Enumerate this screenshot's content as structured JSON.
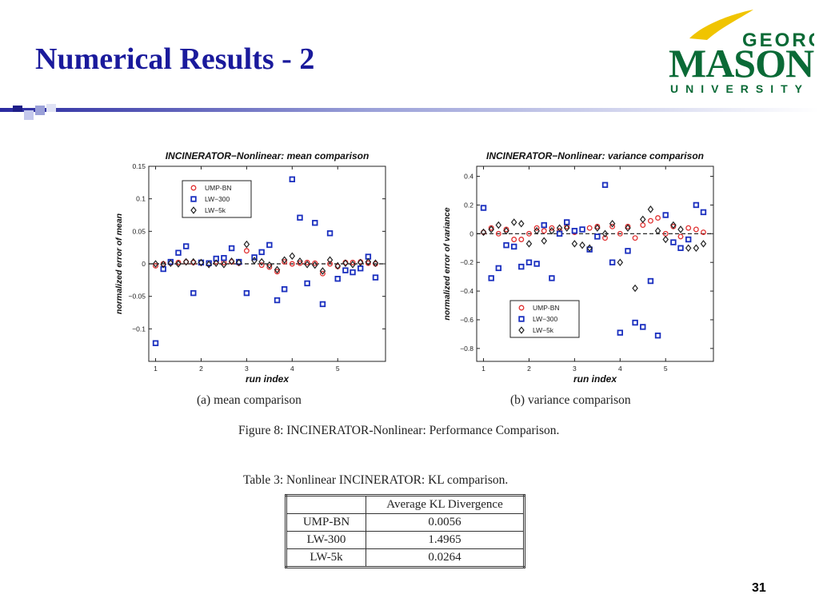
{
  "slide": {
    "title": "Numerical Results - 2",
    "page_number": "31",
    "colors": {
      "title": "#1a1a9c",
      "logo_green": "#0a6a36",
      "logo_gold": "#f0c400"
    }
  },
  "logo": {
    "line1": "GEORGE",
    "line2": "MASON",
    "line3": "UNIVERSITY"
  },
  "figure": {
    "caption": "Figure 8: INCINERATOR-Nonlinear: Performance Comparison.",
    "subcaption_a": "(a) mean comparison",
    "subcaption_b": "(b) variance comparison"
  },
  "table": {
    "caption": "Table 3: Nonlinear INCINERATOR: KL comparison.",
    "header": [
      "",
      "Average KL Divergence"
    ],
    "rows": [
      [
        "UMP-BN",
        "0.0056"
      ],
      [
        "LW-300",
        "1.4965"
      ],
      [
        "LW-5k",
        "0.0264"
      ]
    ]
  },
  "chart_data": [
    {
      "type": "scatter",
      "title": "INCINERATOR−Nonlinear: mean comparison",
      "xlabel": "run index",
      "ylabel": "normalized error of mean",
      "xlim": [
        0.85,
        6.05
      ],
      "ylim": [
        -0.15,
        0.15
      ],
      "xticks": [
        1,
        2,
        3,
        4,
        5
      ],
      "xtick_labels": [
        "1",
        "2",
        "3",
        "4",
        "5"
      ],
      "yticks": [
        -0.1,
        -0.05,
        0,
        0.05,
        0.1,
        0.15
      ],
      "ytick_labels": [
        "−0.1",
        "−0.05",
        "0",
        "0.05",
        "0.1",
        "0.15"
      ],
      "zero_line": true,
      "legend_position": "top-left",
      "series": [
        {
          "name": "UMP-BN",
          "marker": "circle",
          "color": "#e03030",
          "x": [
            1.0,
            1.17,
            1.33,
            1.5,
            1.67,
            1.83,
            2.0,
            2.17,
            2.33,
            2.5,
            2.67,
            2.83,
            3.0,
            3.17,
            3.33,
            3.5,
            3.67,
            3.83,
            4.0,
            4.17,
            4.33,
            4.5,
            4.67,
            4.83,
            5.0,
            5.17,
            5.33,
            5.5,
            5.67,
            5.83
          ],
          "y": [
            -0.003,
            0.0,
            0.001,
            0.002,
            0.003,
            0.002,
            0.001,
            0.0,
            0.003,
            0.002,
            0.003,
            0.001,
            0.02,
            0.01,
            -0.002,
            -0.005,
            -0.012,
            0.003,
            0.0,
            0.001,
            0.002,
            0.001,
            -0.015,
            0.0,
            -0.004,
            0.002,
            0.002,
            0.003,
            0.001,
            0.0
          ]
        },
        {
          "name": "LW−300",
          "marker": "square",
          "color": "#1a2fbf",
          "x": [
            1.0,
            1.17,
            1.33,
            1.5,
            1.67,
            1.83,
            2.0,
            2.17,
            2.33,
            2.5,
            2.67,
            2.83,
            3.0,
            3.17,
            3.33,
            3.5,
            3.67,
            3.83,
            4.0,
            4.17,
            4.33,
            4.5,
            4.67,
            4.83,
            5.0,
            5.17,
            5.33,
            5.5,
            5.67,
            5.83
          ],
          "y": [
            -0.122,
            -0.008,
            0.003,
            0.017,
            0.027,
            -0.045,
            0.002,
            0.001,
            0.008,
            0.009,
            0.024,
            0.003,
            -0.045,
            0.01,
            0.018,
            0.029,
            -0.056,
            -0.039,
            0.13,
            0.071,
            -0.03,
            0.063,
            -0.062,
            0.047,
            -0.023,
            -0.01,
            -0.013,
            -0.007,
            0.011,
            -0.021
          ]
        },
        {
          "name": "LW−5k",
          "marker": "diamond",
          "color": "#222222",
          "x": [
            1.0,
            1.17,
            1.33,
            1.5,
            1.67,
            1.83,
            2.0,
            2.17,
            2.33,
            2.5,
            2.67,
            2.83,
            3.0,
            3.17,
            3.33,
            3.5,
            3.67,
            3.83,
            4.0,
            4.17,
            4.33,
            4.5,
            4.67,
            4.83,
            5.0,
            5.17,
            5.33,
            5.5,
            5.67,
            5.83
          ],
          "y": [
            0.0,
            -0.001,
            0.001,
            0.0,
            0.003,
            0.003,
            0.002,
            -0.001,
            0.001,
            -0.001,
            0.004,
            0.002,
            0.03,
            0.005,
            0.003,
            -0.002,
            -0.009,
            0.006,
            0.012,
            0.004,
            -0.001,
            -0.002,
            -0.011,
            0.006,
            -0.003,
            0.001,
            -0.001,
            0.002,
            0.003,
            0.001
          ]
        }
      ]
    },
    {
      "type": "scatter",
      "title": "INCINERATOR−Nonlinear: variance comparison",
      "xlabel": "run index",
      "ylabel": "normalized error of variance",
      "xlim": [
        0.85,
        6.05
      ],
      "ylim": [
        -0.89,
        0.47
      ],
      "xticks": [
        1,
        2,
        3,
        4,
        5
      ],
      "xtick_labels": [
        "1",
        "2",
        "3",
        "4",
        "5"
      ],
      "yticks": [
        -0.8,
        -0.6,
        -0.4,
        -0.2,
        0,
        0.2,
        0.4
      ],
      "ytick_labels": [
        "−0.8",
        "−0.6",
        "−0.4",
        "−0.2",
        "0",
        "0.2",
        "0.4"
      ],
      "zero_line": true,
      "legend_position": "bottom-left",
      "series": [
        {
          "name": "UMP-BN",
          "marker": "circle",
          "color": "#e03030",
          "x": [
            1.0,
            1.17,
            1.33,
            1.5,
            1.67,
            1.83,
            2.0,
            2.17,
            2.33,
            2.5,
            2.67,
            2.83,
            3.0,
            3.17,
            3.33,
            3.5,
            3.67,
            3.83,
            4.0,
            4.17,
            4.33,
            4.5,
            4.67,
            4.83,
            5.0,
            5.17,
            5.33,
            5.5,
            5.67,
            5.83
          ],
          "y": [
            0.01,
            0.04,
            0.0,
            0.03,
            -0.04,
            -0.04,
            0.0,
            0.04,
            0.02,
            0.04,
            0.02,
            0.05,
            0.01,
            0.03,
            0.04,
            0.05,
            -0.03,
            0.05,
            0.0,
            0.05,
            -0.03,
            0.06,
            0.09,
            0.11,
            0.0,
            0.05,
            -0.02,
            0.04,
            0.03,
            0.01
          ]
        },
        {
          "name": "LW−300",
          "marker": "square",
          "color": "#1a2fbf",
          "x": [
            1.0,
            1.17,
            1.33,
            1.5,
            1.67,
            1.83,
            2.0,
            2.17,
            2.33,
            2.5,
            2.67,
            2.83,
            3.0,
            3.17,
            3.33,
            3.5,
            3.67,
            3.83,
            4.0,
            4.17,
            4.33,
            4.5,
            4.67,
            4.83,
            5.0,
            5.17,
            5.33,
            5.5,
            5.67,
            5.83
          ],
          "y": [
            0.18,
            -0.31,
            -0.24,
            -0.08,
            -0.09,
            -0.23,
            -0.2,
            -0.21,
            0.06,
            -0.31,
            0.0,
            0.08,
            0.02,
            0.03,
            -0.11,
            -0.02,
            0.34,
            -0.2,
            -0.69,
            -0.12,
            -0.62,
            -0.65,
            -0.33,
            -0.71,
            0.13,
            -0.06,
            -0.1,
            -0.04,
            0.2,
            0.15
          ]
        },
        {
          "name": "LW−5k",
          "marker": "diamond",
          "color": "#222222",
          "x": [
            1.0,
            1.17,
            1.33,
            1.5,
            1.67,
            1.83,
            2.0,
            2.17,
            2.33,
            2.5,
            2.67,
            2.83,
            3.0,
            3.17,
            3.33,
            3.5,
            3.67,
            3.83,
            4.0,
            4.17,
            4.33,
            4.5,
            4.67,
            4.83,
            5.0,
            5.17,
            5.33,
            5.5,
            5.67,
            5.83
          ],
          "y": [
            0.01,
            0.03,
            0.06,
            0.02,
            0.08,
            0.07,
            -0.07,
            0.02,
            -0.05,
            0.02,
            0.04,
            0.04,
            -0.07,
            -0.08,
            -0.1,
            0.04,
            0.0,
            0.07,
            -0.2,
            0.04,
            -0.38,
            0.1,
            0.17,
            0.02,
            -0.04,
            0.06,
            0.03,
            -0.1,
            -0.1,
            -0.07
          ]
        }
      ]
    }
  ]
}
